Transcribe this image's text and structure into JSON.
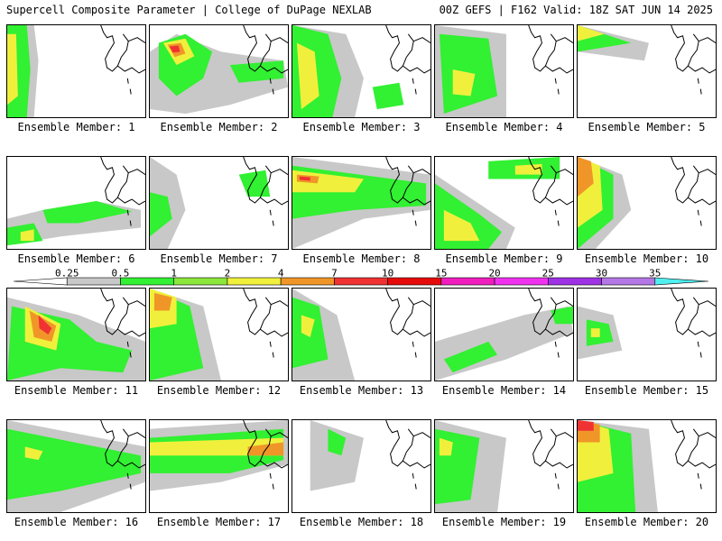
{
  "header": {
    "title": "Supercell Composite Parameter | College of DuPage NEXLAB",
    "run_info": "00Z GEFS | F162 Valid: 18Z SAT JUN 14 2025"
  },
  "members": [
    {
      "label": "Ensemble Member: 1"
    },
    {
      "label": "Ensemble Member: 2"
    },
    {
      "label": "Ensemble Member: 3"
    },
    {
      "label": "Ensemble Member: 4"
    },
    {
      "label": "Ensemble Member: 5"
    },
    {
      "label": "Ensemble Member: 6"
    },
    {
      "label": "Ensemble Member: 7"
    },
    {
      "label": "Ensemble Member: 8"
    },
    {
      "label": "Ensemble Member: 9"
    },
    {
      "label": "Ensemble Member: 10"
    },
    {
      "label": "Ensemble Member: 11"
    },
    {
      "label": "Ensemble Member: 12"
    },
    {
      "label": "Ensemble Member: 13"
    },
    {
      "label": "Ensemble Member: 14"
    },
    {
      "label": "Ensemble Member: 15"
    },
    {
      "label": "Ensemble Member: 16"
    },
    {
      "label": "Ensemble Member: 17"
    },
    {
      "label": "Ensemble Member: 18"
    },
    {
      "label": "Ensemble Member: 19"
    },
    {
      "label": "Ensemble Member: 20"
    }
  ],
  "legend": {
    "thresholds": [
      "0.25",
      "0.5",
      "1",
      "2",
      "4",
      "7",
      "10",
      "15",
      "20",
      "25",
      "30",
      "35"
    ],
    "colors": [
      "#c8c8c8",
      "#32f032",
      "#8ce63c",
      "#f0f03c",
      "#f09628",
      "#f03232",
      "#e60a0a",
      "#f01ebe",
      "#f032f0",
      "#a032e6",
      "#b478e6",
      "#50f0f0"
    ]
  }
}
